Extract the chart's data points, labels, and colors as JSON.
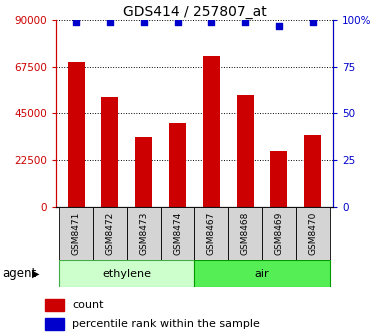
{
  "title": "GDS414 / 257807_at",
  "samples": [
    "GSM8471",
    "GSM8472",
    "GSM8473",
    "GSM8474",
    "GSM8467",
    "GSM8468",
    "GSM8469",
    "GSM8470"
  ],
  "counts": [
    70000,
    53000,
    33500,
    40500,
    72500,
    54000,
    27000,
    34500
  ],
  "percentile_ranks": [
    99,
    99,
    99,
    99,
    99,
    99,
    97,
    99
  ],
  "groups": [
    {
      "label": "ethylene",
      "indices": [
        0,
        3
      ],
      "color": "#ccffcc",
      "edge_color": "#44aa44"
    },
    {
      "label": "air",
      "indices": [
        4,
        7
      ],
      "color": "#55ee55",
      "edge_color": "#009900"
    }
  ],
  "group_label": "agent",
  "ylim_left": [
    0,
    90000
  ],
  "ylim_right": [
    0,
    100
  ],
  "yticks_left": [
    0,
    22500,
    45000,
    67500,
    90000
  ],
  "ytick_labels_left": [
    "0",
    "22500",
    "45000",
    "67500",
    "90000"
  ],
  "yticks_right": [
    0,
    25,
    50,
    75,
    100
  ],
  "ytick_labels_right": [
    "0",
    "25",
    "50",
    "75",
    "100%"
  ],
  "bar_color": "#cc0000",
  "dot_color": "#0000cc",
  "bar_width": 0.5,
  "legend_count_color": "#cc0000",
  "legend_dot_color": "#0000cc",
  "grid_color": "black",
  "title_fontsize": 10,
  "tick_fontsize": 7.5,
  "sample_fontsize": 6.5,
  "label_fontsize": 8,
  "group_label_fontsize": 8.5
}
